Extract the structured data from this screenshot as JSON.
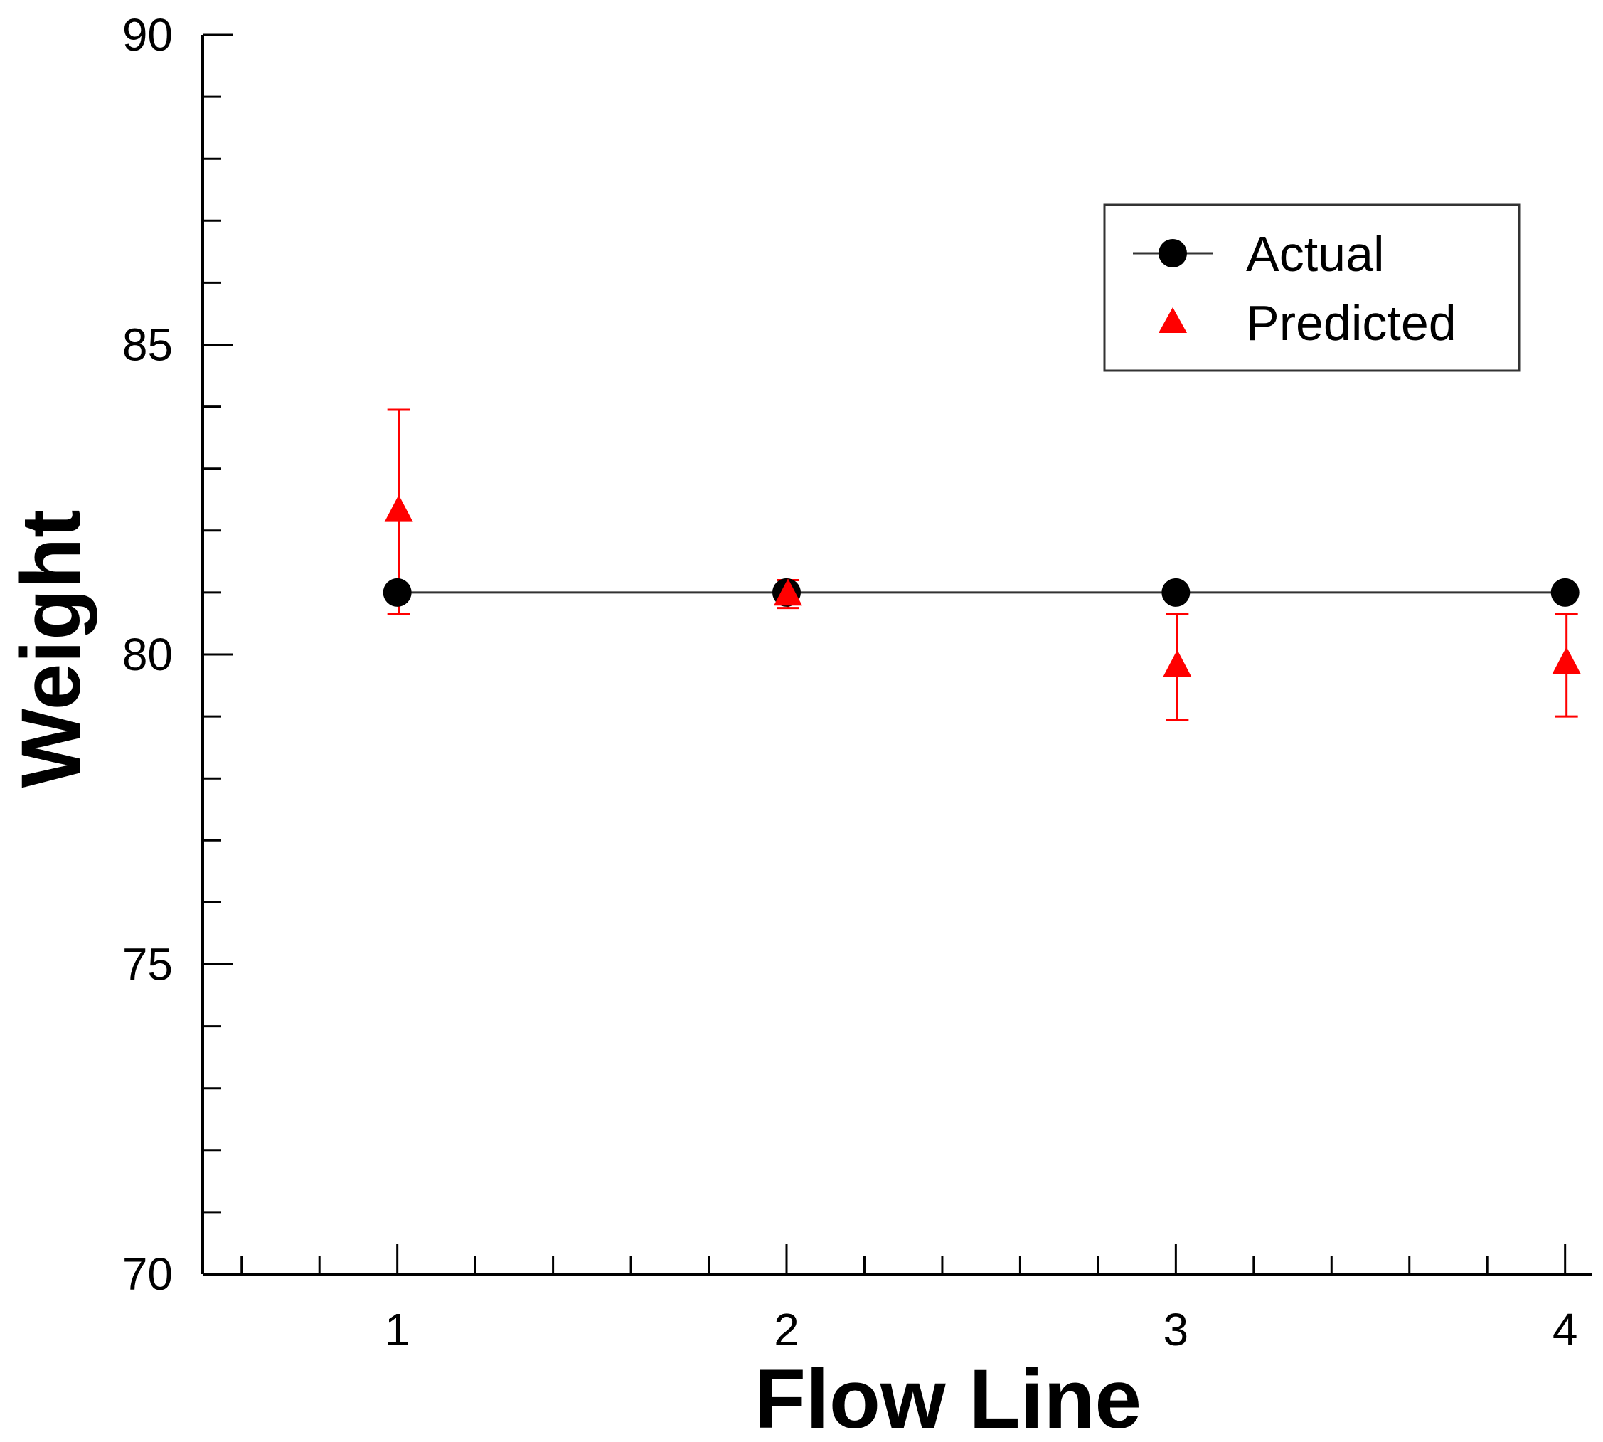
{
  "chart_data": {
    "type": "scatter",
    "title": "",
    "xlabel": "Flow Line",
    "ylabel": "Weight",
    "x": [
      1,
      2,
      3,
      4
    ],
    "xlim": [
      0.5,
      4.07
    ],
    "ylim": [
      70,
      90
    ],
    "xticks": [
      "1",
      "2",
      "3",
      "4"
    ],
    "yticks": [
      "70",
      "75",
      "80",
      "85",
      "90"
    ],
    "grid": false,
    "legend_position": "top-right",
    "series": [
      {
        "name": "Actual",
        "marker": "circle",
        "line": true,
        "color": "#000000",
        "values": [
          81,
          81,
          81,
          81
        ]
      },
      {
        "name": "Predicted",
        "marker": "triangle",
        "line": false,
        "color": "#ff0000",
        "values": [
          82.3,
          80.95,
          79.8,
          79.85
        ],
        "error_low": [
          80.65,
          80.75,
          78.95,
          79.0
        ],
        "error_high": [
          83.95,
          81.2,
          80.65,
          80.65
        ]
      }
    ]
  }
}
